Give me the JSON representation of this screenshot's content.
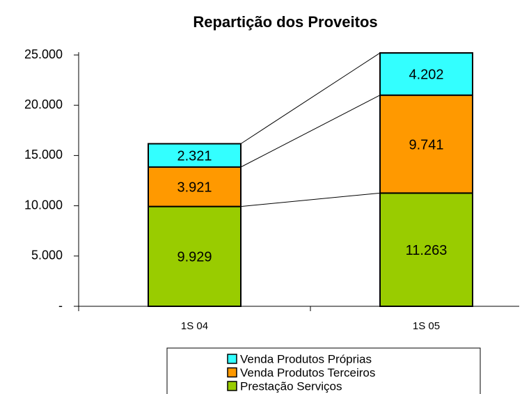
{
  "chart_data": {
    "type": "stacked_bar",
    "title": "Repartição dos Proveitos",
    "categories": [
      "1S 04",
      "1S 05"
    ],
    "series": [
      {
        "name": "Prestação Serviços",
        "color": "#99cc00",
        "values": [
          9929,
          11263
        ],
        "value_labels": [
          "9.929",
          "11.263"
        ]
      },
      {
        "name": "Venda Produtos Terceiros",
        "color": "#ff9900",
        "values": [
          3921,
          9741
        ],
        "value_labels": [
          "3.921",
          "9.741"
        ]
      },
      {
        "name": "Venda Produtos Próprias",
        "color": "#33ffff",
        "values": [
          2321,
          4202
        ],
        "value_labels": [
          "2.321",
          "4.202"
        ]
      }
    ],
    "ylim": [
      0,
      25000
    ],
    "yticks": [
      {
        "value": 0,
        "label": "-"
      },
      {
        "value": 5000,
        "label": "5.000"
      },
      {
        "value": 10000,
        "label": "10.000"
      },
      {
        "value": 15000,
        "label": "15.000"
      },
      {
        "value": 20000,
        "label": "20.000"
      },
      {
        "value": 25000,
        "label": "25.000"
      }
    ],
    "series_lines": true
  }
}
